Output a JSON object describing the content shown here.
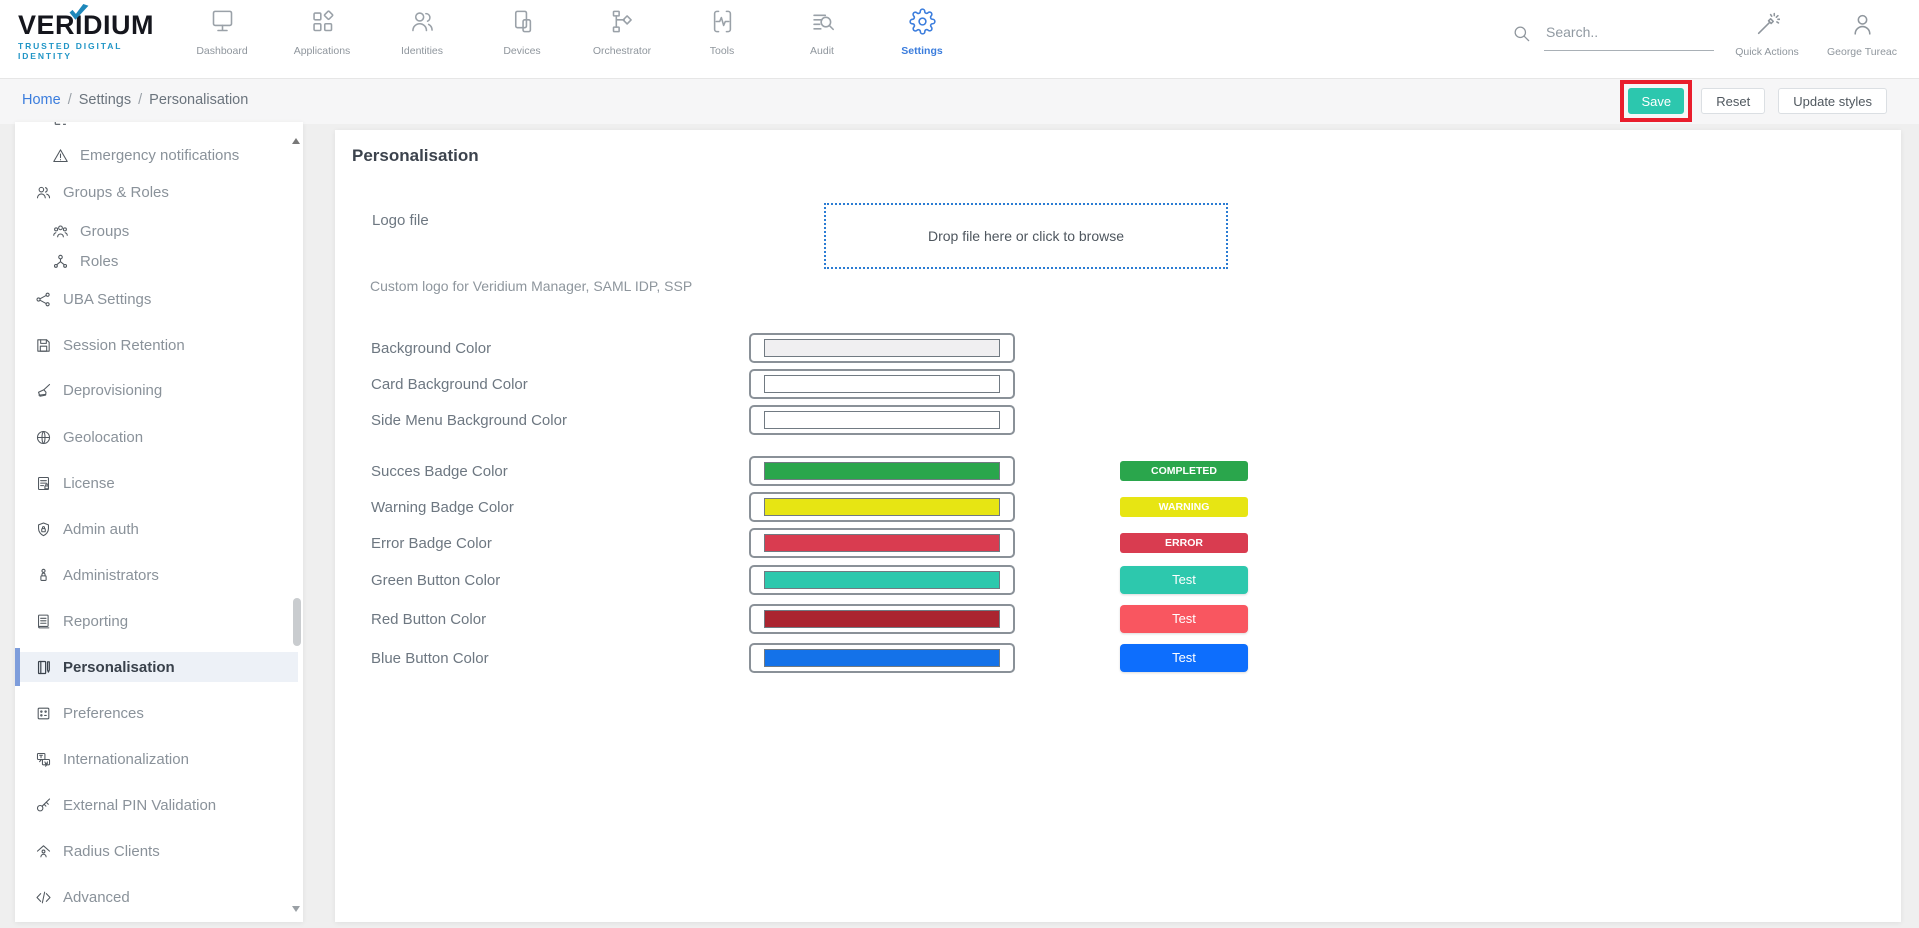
{
  "brand": {
    "name": "VERIDIUM",
    "tagline": "TRUSTED DIGITAL IDENTITY"
  },
  "navbar": {
    "items": [
      {
        "label": "Dashboard",
        "icon": "dashboard-icon"
      },
      {
        "label": "Applications",
        "icon": "applications-icon"
      },
      {
        "label": "Identities",
        "icon": "identities-icon"
      },
      {
        "label": "Devices",
        "icon": "devices-icon"
      },
      {
        "label": "Orchestrator",
        "icon": "orchestrator-icon"
      },
      {
        "label": "Tools",
        "icon": "tools-icon"
      },
      {
        "label": "Audit",
        "icon": "audit-icon"
      },
      {
        "label": "Settings",
        "icon": "settings-icon",
        "active": true
      }
    ],
    "search_placeholder": "Search..",
    "quick_actions_label": "Quick Actions",
    "user_name": "George Tureac"
  },
  "breadcrumb": {
    "items": [
      "Home",
      "Settings",
      "Personalisation"
    ]
  },
  "actions": {
    "save": "Save",
    "reset": "Reset",
    "update_styles": "Update styles"
  },
  "sidebar": {
    "items": [
      {
        "label": "Emergency notifications",
        "icon": "warning-icon",
        "sub": true
      },
      {
        "label": "Groups & Roles",
        "icon": "groups-roles-icon"
      },
      {
        "label": "Groups",
        "icon": "groups-icon",
        "sub": true
      },
      {
        "label": "Roles",
        "icon": "roles-icon",
        "sub": true
      },
      {
        "label": "UBA Settings",
        "icon": "uba-icon"
      },
      {
        "label": "Session Retention",
        "icon": "session-retention-icon"
      },
      {
        "label": "Deprovisioning",
        "icon": "broom-icon"
      },
      {
        "label": "Geolocation",
        "icon": "globe-icon"
      },
      {
        "label": "License",
        "icon": "license-icon"
      },
      {
        "label": "Admin auth",
        "icon": "shield-lock-icon"
      },
      {
        "label": "Administrators",
        "icon": "person-lock-icon"
      },
      {
        "label": "Reporting",
        "icon": "report-icon"
      },
      {
        "label": "Personalisation",
        "icon": "personalisation-icon",
        "active": true
      },
      {
        "label": "Preferences",
        "icon": "preferences-icon"
      },
      {
        "label": "Internationalization",
        "icon": "i18n-icon"
      },
      {
        "label": "External PIN Validation",
        "icon": "key-icon"
      },
      {
        "label": "Radius Clients",
        "icon": "radius-icon"
      },
      {
        "label": "Advanced",
        "icon": "code-icon"
      }
    ]
  },
  "main": {
    "title": "Personalisation",
    "logo_file": {
      "label": "Logo file",
      "dropzone_text": "Drop file here or click to browse",
      "helper": "Custom logo for Veridium Manager, SAML IDP, SSP"
    },
    "background_rows": [
      {
        "label": "Background Color",
        "swatch": "#f0eff1"
      },
      {
        "label": "Card Background Color",
        "swatch": "#ffffff"
      },
      {
        "label": "Side Menu Background Color",
        "swatch": "#ffffff"
      }
    ],
    "badge_rows": [
      {
        "label": "Succes Badge Color",
        "swatch": "#2aa64c",
        "preview": {
          "kind": "badge",
          "text": "COMPLETED",
          "color": "#2aa64c"
        }
      },
      {
        "label": "Warning Badge Color",
        "swatch": "#e7e513",
        "preview": {
          "kind": "badge",
          "text": "WARNING",
          "color": "#e7e513"
        }
      },
      {
        "label": "Error Badge Color",
        "swatch": "#d93c50",
        "preview": {
          "kind": "badge",
          "text": "ERROR",
          "color": "#d93c50"
        }
      },
      {
        "label": "Green Button Color",
        "swatch": "#2dc8ad",
        "preview": {
          "kind": "button",
          "text": "Test",
          "color": "#2dc8ad"
        }
      },
      {
        "label": "Red Button Color",
        "swatch": "#ab2430",
        "preview": {
          "kind": "button",
          "text": "Test",
          "color": "#f95660"
        }
      },
      {
        "label": "Blue Button Color",
        "swatch": "#1472e9",
        "preview": {
          "kind": "button",
          "text": "Test",
          "color": "#0d6efd"
        }
      }
    ]
  },
  "colors": {
    "accent_blue": "#3b7ddd",
    "save_button": "#2cc7ae",
    "annotation_box": "#e91d2c",
    "dropzone_border": "#2b7cd3",
    "active_item_bar": "#7e9ddb"
  }
}
